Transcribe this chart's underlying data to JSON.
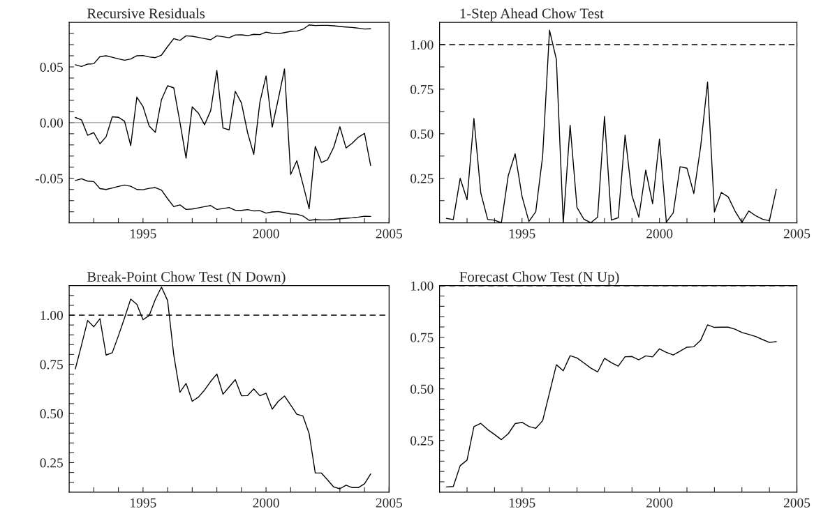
{
  "chart_data": [
    {
      "type": "line",
      "title": "Recursive Residuals",
      "x": [
        1992.25,
        1992.5,
        1992.75,
        1993,
        1993.25,
        1993.5,
        1993.75,
        1994,
        1994.25,
        1994.5,
        1994.75,
        1995,
        1995.25,
        1995.5,
        1995.75,
        1996,
        1996.25,
        1996.5,
        1996.75,
        1997,
        1997.25,
        1997.5,
        1997.75,
        1998,
        1998.25,
        1998.5,
        1998.75,
        1999,
        1999.25,
        1999.5,
        1999.75,
        2000,
        2000.25,
        2000.5,
        2000.75,
        2001,
        2001.25,
        2001.5,
        2001.75,
        2002,
        2002.25,
        2002.5,
        2002.75,
        2003,
        2003.25,
        2003.5,
        2003.75,
        2004,
        2004.25
      ],
      "series": [
        {
          "color": "#000000",
          "values": [
            0.0046,
            0.0025,
            -0.0113,
            -0.009,
            -0.019,
            -0.0127,
            0.0052,
            0.0048,
            0.0012,
            -0.0206,
            0.0229,
            0.0144,
            -0.0031,
            -0.0087,
            0.0206,
            0.0331,
            0.0312,
            0.0004,
            -0.0319,
            0.0142,
            0.0085,
            -0.0019,
            0.0108,
            0.0469,
            -0.0048,
            -0.0065,
            0.0281,
            0.0177,
            -0.009,
            -0.0285,
            0.0185,
            0.0419,
            -0.004,
            0.0215,
            0.0481,
            -0.0465,
            -0.0342,
            -0.0554,
            -0.0773,
            -0.0213,
            -0.0358,
            -0.0333,
            -0.0221,
            -0.0037,
            -0.0227,
            -0.0185,
            -0.0131,
            -0.0096,
            -0.0385
          ]
        },
        {
          "color": "#000000",
          "values": [
            0.0519,
            0.0504,
            0.0525,
            0.0529,
            0.0592,
            0.06,
            0.0587,
            0.0573,
            0.056,
            0.0571,
            0.06,
            0.0602,
            0.059,
            0.0583,
            0.0606,
            0.0683,
            0.0754,
            0.0738,
            0.0779,
            0.0775,
            0.0765,
            0.0754,
            0.0744,
            0.0779,
            0.0771,
            0.0762,
            0.0787,
            0.0788,
            0.0781,
            0.0792,
            0.079,
            0.0812,
            0.0802,
            0.0798,
            0.0808,
            0.0819,
            0.0821,
            0.0838,
            0.0877,
            0.0871,
            0.0873,
            0.0873,
            0.0869,
            0.0863,
            0.0858,
            0.0854,
            0.0848,
            0.084,
            0.0842
          ]
        },
        {
          "color": "#000000",
          "values": [
            -0.0519,
            -0.0504,
            -0.0525,
            -0.0529,
            -0.0592,
            -0.06,
            -0.0587,
            -0.0573,
            -0.056,
            -0.0571,
            -0.06,
            -0.0602,
            -0.059,
            -0.0583,
            -0.0606,
            -0.0683,
            -0.0754,
            -0.0738,
            -0.0779,
            -0.0775,
            -0.0765,
            -0.0754,
            -0.0744,
            -0.0779,
            -0.0771,
            -0.0762,
            -0.0787,
            -0.0788,
            -0.0781,
            -0.0792,
            -0.079,
            -0.0812,
            -0.0802,
            -0.0798,
            -0.0808,
            -0.0819,
            -0.0821,
            -0.0838,
            -0.0877,
            -0.0871,
            -0.0873,
            -0.0873,
            -0.0869,
            -0.0863,
            -0.0858,
            -0.0854,
            -0.0848,
            -0.084,
            -0.0842
          ]
        }
      ],
      "ref_lines": [
        {
          "axis": "y",
          "value": 0,
          "color": "#999999",
          "line_style": "solid"
        }
      ],
      "xlim": [
        1992,
        2005
      ],
      "xticks": [
        {
          "value": 1993,
          "label": null
        },
        {
          "value": 1994,
          "label": null
        },
        1995,
        {
          "value": 1996,
          "label": null
        },
        {
          "value": 1997,
          "label": null
        },
        {
          "value": 1998,
          "label": null
        },
        {
          "value": 1999,
          "label": null
        },
        2000,
        {
          "value": 2001,
          "label": null
        },
        {
          "value": 2002,
          "label": null
        },
        {
          "value": 2003,
          "label": null
        },
        {
          "value": 2004,
          "label": null
        },
        2005
      ],
      "ylim": [
        -0.09,
        0.09
      ],
      "yticks": [
        {
          "value": -0.08,
          "label": null
        },
        {
          "value": -0.07,
          "label": null
        },
        {
          "value": -0.06,
          "label": null
        },
        {
          "value": -0.05,
          "label": "-0.05"
        },
        {
          "value": -0.04,
          "label": null
        },
        {
          "value": -0.03,
          "label": null
        },
        {
          "value": -0.02,
          "label": null
        },
        {
          "value": -0.01,
          "label": null
        },
        {
          "value": 0,
          "label": "0.00"
        },
        {
          "value": 0.01,
          "label": null
        },
        {
          "value": 0.02,
          "label": null
        },
        {
          "value": 0.03,
          "label": null
        },
        {
          "value": 0.04,
          "label": null
        },
        {
          "value": 0.05,
          "label": "0.05"
        },
        {
          "value": 0.06,
          "label": null
        },
        {
          "value": 0.07,
          "label": null
        },
        {
          "value": 0.08,
          "label": null
        }
      ],
      "grid": false,
      "marker": "none",
      "line_style": "solid"
    },
    {
      "type": "line",
      "title": "1-Step Ahead Chow Test",
      "x": [
        1992.25,
        1992.5,
        1992.75,
        1993,
        1993.25,
        1993.5,
        1993.75,
        1994,
        1994.25,
        1994.5,
        1994.75,
        1995,
        1995.25,
        1995.5,
        1995.75,
        1996,
        1996.25,
        1996.5,
        1996.75,
        1997,
        1997.25,
        1997.5,
        1997.75,
        1998,
        1998.25,
        1998.5,
        1998.75,
        1999,
        1999.25,
        1999.5,
        1999.75,
        2000,
        2000.25,
        2000.5,
        2000.75,
        2001,
        2001.25,
        2001.5,
        2001.75,
        2002,
        2002.25,
        2002.5,
        2002.75,
        2003,
        2003.25,
        2003.5,
        2003.75,
        2004,
        2004.25
      ],
      "series": [
        {
          "color": "#000000",
          "values": [
            0.025,
            0.019,
            0.25,
            0.13,
            0.586,
            0.168,
            0.02,
            0.015,
            0.001,
            0.266,
            0.388,
            0.149,
            0.008,
            0.063,
            0.374,
            1.081,
            0.917,
            0.0,
            0.548,
            0.086,
            0.021,
            0.001,
            0.032,
            0.597,
            0.016,
            0.029,
            0.493,
            0.153,
            0.032,
            0.296,
            0.108,
            0.47,
            0.004,
            0.056,
            0.315,
            0.307,
            0.165,
            0.43,
            0.79,
            0.061,
            0.171,
            0.146,
            0.066,
            0.003,
            0.067,
            0.04,
            0.021,
            0.012,
            0.189
          ]
        }
      ],
      "ref_lines": [
        {
          "axis": "y",
          "value": 1,
          "color": "#000000",
          "line_style": "dashed"
        }
      ],
      "xlim": [
        1992,
        2005
      ],
      "xticks": [
        {
          "value": 1993,
          "label": null
        },
        {
          "value": 1994,
          "label": null
        },
        1995,
        {
          "value": 1996,
          "label": null
        },
        {
          "value": 1997,
          "label": null
        },
        {
          "value": 1998,
          "label": null
        },
        {
          "value": 1999,
          "label": null
        },
        2000,
        {
          "value": 2001,
          "label": null
        },
        {
          "value": 2002,
          "label": null
        },
        {
          "value": 2003,
          "label": null
        },
        {
          "value": 2004,
          "label": null
        },
        2005
      ],
      "ylim": [
        0,
        1.125
      ],
      "yticks": [
        {
          "value": 0.125,
          "label": null
        },
        {
          "value": 0.25,
          "label": "0.25"
        },
        {
          "value": 0.375,
          "label": null
        },
        {
          "value": 0.5,
          "label": "0.50"
        },
        {
          "value": 0.625,
          "label": null
        },
        {
          "value": 0.75,
          "label": "0.75"
        },
        {
          "value": 0.875,
          "label": null
        },
        {
          "value": 1,
          "label": "1.00"
        }
      ],
      "grid": false,
      "marker": "none",
      "line_style": "solid"
    },
    {
      "type": "line",
      "title": "Break-Point Chow Test (N Down)",
      "x": [
        1992.25,
        1992.5,
        1992.75,
        1993,
        1993.25,
        1993.5,
        1993.75,
        1994,
        1994.25,
        1994.5,
        1994.75,
        1995,
        1995.25,
        1995.5,
        1995.75,
        1996,
        1996.25,
        1996.5,
        1996.75,
        1997,
        1997.25,
        1997.5,
        1997.75,
        1998,
        1998.25,
        1998.5,
        1998.75,
        1999,
        1999.25,
        1999.5,
        1999.75,
        2000,
        2000.25,
        2000.5,
        2000.75,
        2001,
        2001.25,
        2001.5,
        2001.75,
        2002,
        2002.25,
        2002.5,
        2002.75,
        2003,
        2003.25,
        2003.5,
        2003.75,
        2004,
        2004.25
      ],
      "series": [
        {
          "color": "#000000",
          "values": [
            0.727,
            0.847,
            0.973,
            0.941,
            0.982,
            0.797,
            0.809,
            0.895,
            0.986,
            1.082,
            1.055,
            0.977,
            0.998,
            1.08,
            1.143,
            1.074,
            0.797,
            0.608,
            0.653,
            0.562,
            0.583,
            0.619,
            0.663,
            0.701,
            0.598,
            0.635,
            0.672,
            0.59,
            0.591,
            0.625,
            0.59,
            0.603,
            0.522,
            0.562,
            0.589,
            0.543,
            0.496,
            0.487,
            0.398,
            0.197,
            0.197,
            0.162,
            0.126,
            0.117,
            0.135,
            0.123,
            0.123,
            0.142,
            0.192
          ]
        }
      ],
      "ref_lines": [
        {
          "axis": "y",
          "value": 1,
          "color": "#000000",
          "line_style": "dashed"
        }
      ],
      "xlim": [
        1992,
        2005
      ],
      "xticks": [
        {
          "value": 1993,
          "label": null
        },
        {
          "value": 1994,
          "label": null
        },
        1995,
        {
          "value": 1996,
          "label": null
        },
        {
          "value": 1997,
          "label": null
        },
        {
          "value": 1998,
          "label": null
        },
        {
          "value": 1999,
          "label": null
        },
        2000,
        {
          "value": 2001,
          "label": null
        },
        {
          "value": 2002,
          "label": null
        },
        {
          "value": 2003,
          "label": null
        },
        {
          "value": 2004,
          "label": null
        },
        2005
      ],
      "ylim": [
        0.1,
        1.15
      ],
      "yticks": [
        {
          "value": 0.15,
          "label": null
        },
        {
          "value": 0.2,
          "label": null
        },
        {
          "value": 0.25,
          "label": "0.25"
        },
        {
          "value": 0.3,
          "label": null
        },
        {
          "value": 0.35,
          "label": null
        },
        {
          "value": 0.4,
          "label": null
        },
        {
          "value": 0.45,
          "label": null
        },
        {
          "value": 0.5,
          "label": "0.50"
        },
        {
          "value": 0.55,
          "label": null
        },
        {
          "value": 0.6,
          "label": null
        },
        {
          "value": 0.65,
          "label": null
        },
        {
          "value": 0.7,
          "label": null
        },
        {
          "value": 0.75,
          "label": "0.75"
        },
        {
          "value": 0.8,
          "label": null
        },
        {
          "value": 0.85,
          "label": null
        },
        {
          "value": 0.9,
          "label": null
        },
        {
          "value": 0.95,
          "label": null
        },
        {
          "value": 1,
          "label": "1.00"
        },
        {
          "value": 1.05,
          "label": null
        },
        {
          "value": 1.1,
          "label": null
        }
      ],
      "grid": false,
      "marker": "none",
      "line_style": "solid"
    },
    {
      "type": "line",
      "title": "Forecast Chow Test (N Up)",
      "x": [
        1992.25,
        1992.5,
        1992.75,
        1993,
        1993.25,
        1993.5,
        1993.75,
        1994,
        1994.25,
        1994.5,
        1994.75,
        1995,
        1995.25,
        1995.5,
        1995.75,
        1996,
        1996.25,
        1996.5,
        1996.75,
        1997,
        1997.25,
        1997.5,
        1997.75,
        1998,
        1998.25,
        1998.5,
        1998.75,
        1999,
        1999.25,
        1999.5,
        1999.75,
        2000,
        2000.25,
        2000.5,
        2000.75,
        2001,
        2001.25,
        2001.5,
        2001.75,
        2002,
        2002.25,
        2002.5,
        2002.75,
        2003,
        2003.25,
        2003.5,
        2003.75,
        2004,
        2004.25
      ],
      "series": [
        {
          "color": "#000000",
          "values": [
            0.025,
            0.027,
            0.128,
            0.155,
            0.317,
            0.333,
            0.303,
            0.279,
            0.254,
            0.283,
            0.332,
            0.338,
            0.318,
            0.309,
            0.346,
            0.481,
            0.617,
            0.588,
            0.661,
            0.65,
            0.626,
            0.601,
            0.582,
            0.648,
            0.627,
            0.61,
            0.656,
            0.657,
            0.641,
            0.66,
            0.655,
            0.694,
            0.677,
            0.664,
            0.683,
            0.702,
            0.704,
            0.736,
            0.81,
            0.798,
            0.799,
            0.799,
            0.789,
            0.773,
            0.764,
            0.754,
            0.739,
            0.725,
            0.729
          ]
        }
      ],
      "ref_lines": [
        {
          "axis": "y",
          "value": 1,
          "color": "#000000",
          "line_style": "dashed"
        }
      ],
      "xlim": [
        1992,
        2005
      ],
      "xticks": [
        {
          "value": 1993,
          "label": null
        },
        {
          "value": 1994,
          "label": null
        },
        1995,
        {
          "value": 1996,
          "label": null
        },
        {
          "value": 1997,
          "label": null
        },
        {
          "value": 1998,
          "label": null
        },
        {
          "value": 1999,
          "label": null
        },
        2000,
        {
          "value": 2001,
          "label": null
        },
        {
          "value": 2002,
          "label": null
        },
        {
          "value": 2003,
          "label": null
        },
        {
          "value": 2004,
          "label": null
        },
        2005
      ],
      "ylim": [
        0,
        1
      ],
      "yticks": [
        {
          "value": 0.05,
          "label": null
        },
        {
          "value": 0.1,
          "label": null
        },
        {
          "value": 0.15,
          "label": null
        },
        {
          "value": 0.2,
          "label": null
        },
        {
          "value": 0.25,
          "label": "0.25"
        },
        {
          "value": 0.3,
          "label": null
        },
        {
          "value": 0.35,
          "label": null
        },
        {
          "value": 0.4,
          "label": null
        },
        {
          "value": 0.45,
          "label": null
        },
        {
          "value": 0.5,
          "label": "0.50"
        },
        {
          "value": 0.55,
          "label": null
        },
        {
          "value": 0.6,
          "label": null
        },
        {
          "value": 0.65,
          "label": null
        },
        {
          "value": 0.7,
          "label": null
        },
        {
          "value": 0.75,
          "label": "0.75"
        },
        {
          "value": 0.8,
          "label": null
        },
        {
          "value": 0.85,
          "label": null
        },
        {
          "value": 0.9,
          "label": null
        },
        {
          "value": 0.95,
          "label": null
        },
        {
          "value": 1,
          "label": "1.00"
        }
      ],
      "grid": false,
      "marker": "none",
      "line_style": "solid"
    }
  ]
}
